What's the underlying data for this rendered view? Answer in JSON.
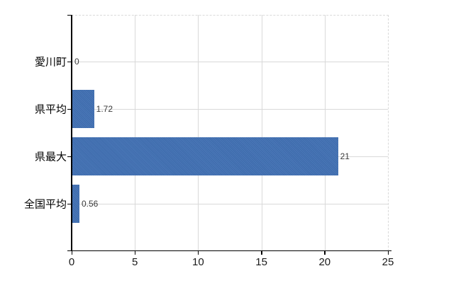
{
  "chart_data": {
    "type": "bar",
    "orientation": "horizontal",
    "title": "",
    "xlabel": "",
    "ylabel": "",
    "categories": [
      "愛川町",
      "県平均",
      "県最大",
      "全国平均"
    ],
    "values": [
      0,
      1.72,
      21,
      0.56
    ],
    "value_labels": [
      "0",
      "1.72",
      "21",
      "0.56"
    ],
    "xlim": [
      0,
      25
    ],
    "x_ticks": [
      0,
      5,
      10,
      15,
      20,
      25
    ],
    "x_tick_labels": [
      "0",
      "5",
      "10",
      "15",
      "20",
      "25"
    ],
    "grid": true,
    "legend": "none",
    "colors": {
      "bar": "#4070b4",
      "gridline": "#d9d9d9",
      "axis": "#000000",
      "tick_label": "#1a1a1a",
      "category_label": "#000000",
      "value_label": "#3a3a3a",
      "background": "#ffffff"
    }
  }
}
